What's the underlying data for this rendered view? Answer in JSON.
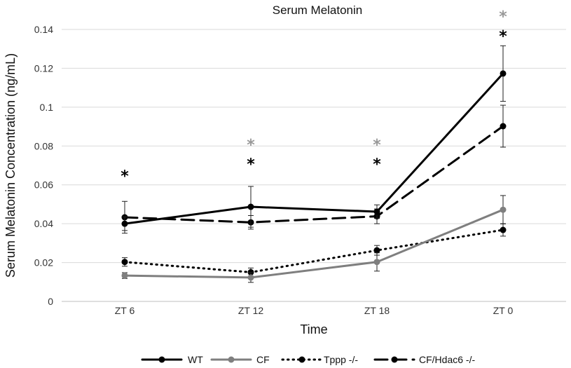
{
  "chart_data": {
    "type": "line",
    "title": "Serum Melatonin",
    "xlabel": "Time",
    "ylabel": "Serum Melatonin Concentration (ng/mL)",
    "categories": [
      "ZT 6",
      "ZT 12",
      "ZT 18",
      "ZT 0"
    ],
    "ylim": [
      0,
      0.14
    ],
    "yticks": [
      0,
      0.02,
      0.04,
      0.06,
      0.08,
      0.1,
      0.12,
      0.14
    ],
    "ytick_labels": [
      "0",
      "0.02",
      "0.04",
      "0.06",
      "0.08",
      "0.1",
      "0.12",
      "0.14"
    ],
    "grid": true,
    "legend_position": "bottom",
    "series": [
      {
        "name": "WT",
        "values": [
          0.04,
          0.0487,
          0.0462,
          0.1173
        ],
        "errors": [
          0.0035,
          0.0105,
          0.0035,
          0.0143
        ],
        "color": "#000000",
        "style": "solid"
      },
      {
        "name": "CF",
        "values": [
          0.0133,
          0.0123,
          0.0203,
          0.0472
        ],
        "errors": [
          0.0015,
          0.0025,
          0.0047,
          0.0073
        ],
        "color": "#7f7f7f",
        "style": "solid"
      },
      {
        "name": "Tppp -/-",
        "values": [
          0.0203,
          0.015,
          0.0263,
          0.0368
        ],
        "errors": [
          0.0022,
          0.0022,
          0.0025,
          0.0032
        ],
        "color": "#000000",
        "style": "dotted"
      },
      {
        "name": "CF/Hdac6 -/-",
        "values": [
          0.0433,
          0.0407,
          0.0438,
          0.0902
        ],
        "errors": [
          0.0082,
          0.0035,
          0.0038,
          0.0108
        ],
        "color": "#000000",
        "style": "dashed"
      }
    ],
    "annotations": [
      {
        "text": "*",
        "category": "ZT 6",
        "y": 0.067,
        "color": "#000000"
      },
      {
        "text": "*",
        "category": "ZT 12",
        "y": 0.083,
        "color": "#999999"
      },
      {
        "text": "*",
        "category": "ZT 12",
        "y": 0.073,
        "color": "#000000"
      },
      {
        "text": "*",
        "category": "ZT 18",
        "y": 0.083,
        "color": "#999999"
      },
      {
        "text": "*",
        "category": "ZT 18",
        "y": 0.073,
        "color": "#000000"
      },
      {
        "text": "*",
        "category": "ZT 0",
        "y": 0.149,
        "color": "#999999"
      },
      {
        "text": "*",
        "category": "ZT 0",
        "y": 0.139,
        "color": "#000000"
      }
    ]
  }
}
